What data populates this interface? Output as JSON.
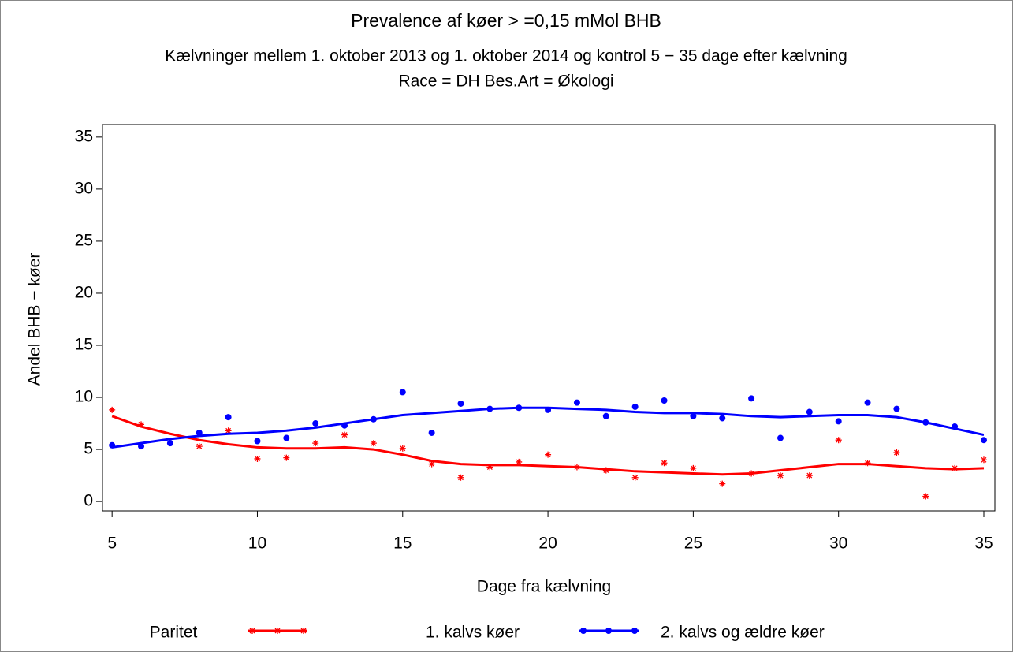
{
  "chart_data": {
    "type": "scatter",
    "title": "Prevalence af køer  > =0,15  mMol BHB",
    "subtitle": "Kælvninger mellem 1. oktober 2013 og 1. oktober 2014 og kontrol 5 − 35 dage efter kælvning",
    "subtitle2": "Race = DH  Bes.Art = Økologi",
    "x_label": "Dage fra kælvning",
    "y_label": "Andel BHB − køer",
    "legend_title": "Paritet",
    "x": [
      5,
      6,
      7,
      8,
      9,
      10,
      11,
      12,
      13,
      14,
      15,
      16,
      17,
      18,
      19,
      20,
      21,
      22,
      23,
      24,
      25,
      26,
      27,
      28,
      29,
      30,
      31,
      32,
      33,
      34,
      35
    ],
    "series": [
      {
        "name": "1. kalvs køer",
        "color": "#ff0000",
        "marker": "star",
        "values": [
          8.8,
          7.4,
          null,
          5.3,
          6.8,
          4.1,
          4.2,
          5.6,
          6.4,
          5.6,
          5.1,
          3.6,
          2.3,
          3.3,
          3.8,
          4.5,
          3.3,
          3.0,
          2.3,
          3.7,
          3.2,
          1.7,
          2.7,
          2.5,
          2.5,
          5.9,
          3.7,
          4.7,
          0.5,
          3.2,
          4.0
        ],
        "smooth": [
          8.2,
          7.2,
          6.5,
          5.9,
          5.5,
          5.2,
          5.1,
          5.1,
          5.2,
          5.0,
          4.5,
          3.9,
          3.6,
          3.5,
          3.5,
          3.4,
          3.3,
          3.1,
          2.9,
          2.8,
          2.7,
          2.6,
          2.7,
          3.0,
          3.3,
          3.6,
          3.6,
          3.4,
          3.2,
          3.1,
          3.2
        ]
      },
      {
        "name": "2. kalvs og ældre køer",
        "color": "#0000ff",
        "marker": "dot",
        "values": [
          5.4,
          5.3,
          5.6,
          6.6,
          8.1,
          5.8,
          6.1,
          7.5,
          7.3,
          7.9,
          10.5,
          6.6,
          9.4,
          8.9,
          9.0,
          8.8,
          9.5,
          8.2,
          9.1,
          9.7,
          8.2,
          8.0,
          9.9,
          6.1,
          8.6,
          7.7,
          9.5,
          8.9,
          7.6,
          7.2,
          5.9
        ],
        "smooth": [
          5.2,
          5.6,
          6.0,
          6.3,
          6.5,
          6.6,
          6.8,
          7.1,
          7.5,
          7.9,
          8.3,
          8.5,
          8.7,
          8.9,
          9.0,
          9.0,
          8.9,
          8.8,
          8.6,
          8.5,
          8.5,
          8.4,
          8.2,
          8.1,
          8.2,
          8.3,
          8.3,
          8.1,
          7.6,
          7.0,
          6.4
        ]
      }
    ],
    "xlim": [
      4.67,
      35.38
    ],
    "xticks": [
      5,
      10,
      15,
      20,
      25,
      30,
      35
    ],
    "ylim": [
      -0.9,
      36.2
    ],
    "yticks": [
      0,
      5,
      10,
      15,
      20,
      25,
      30,
      35
    ]
  }
}
